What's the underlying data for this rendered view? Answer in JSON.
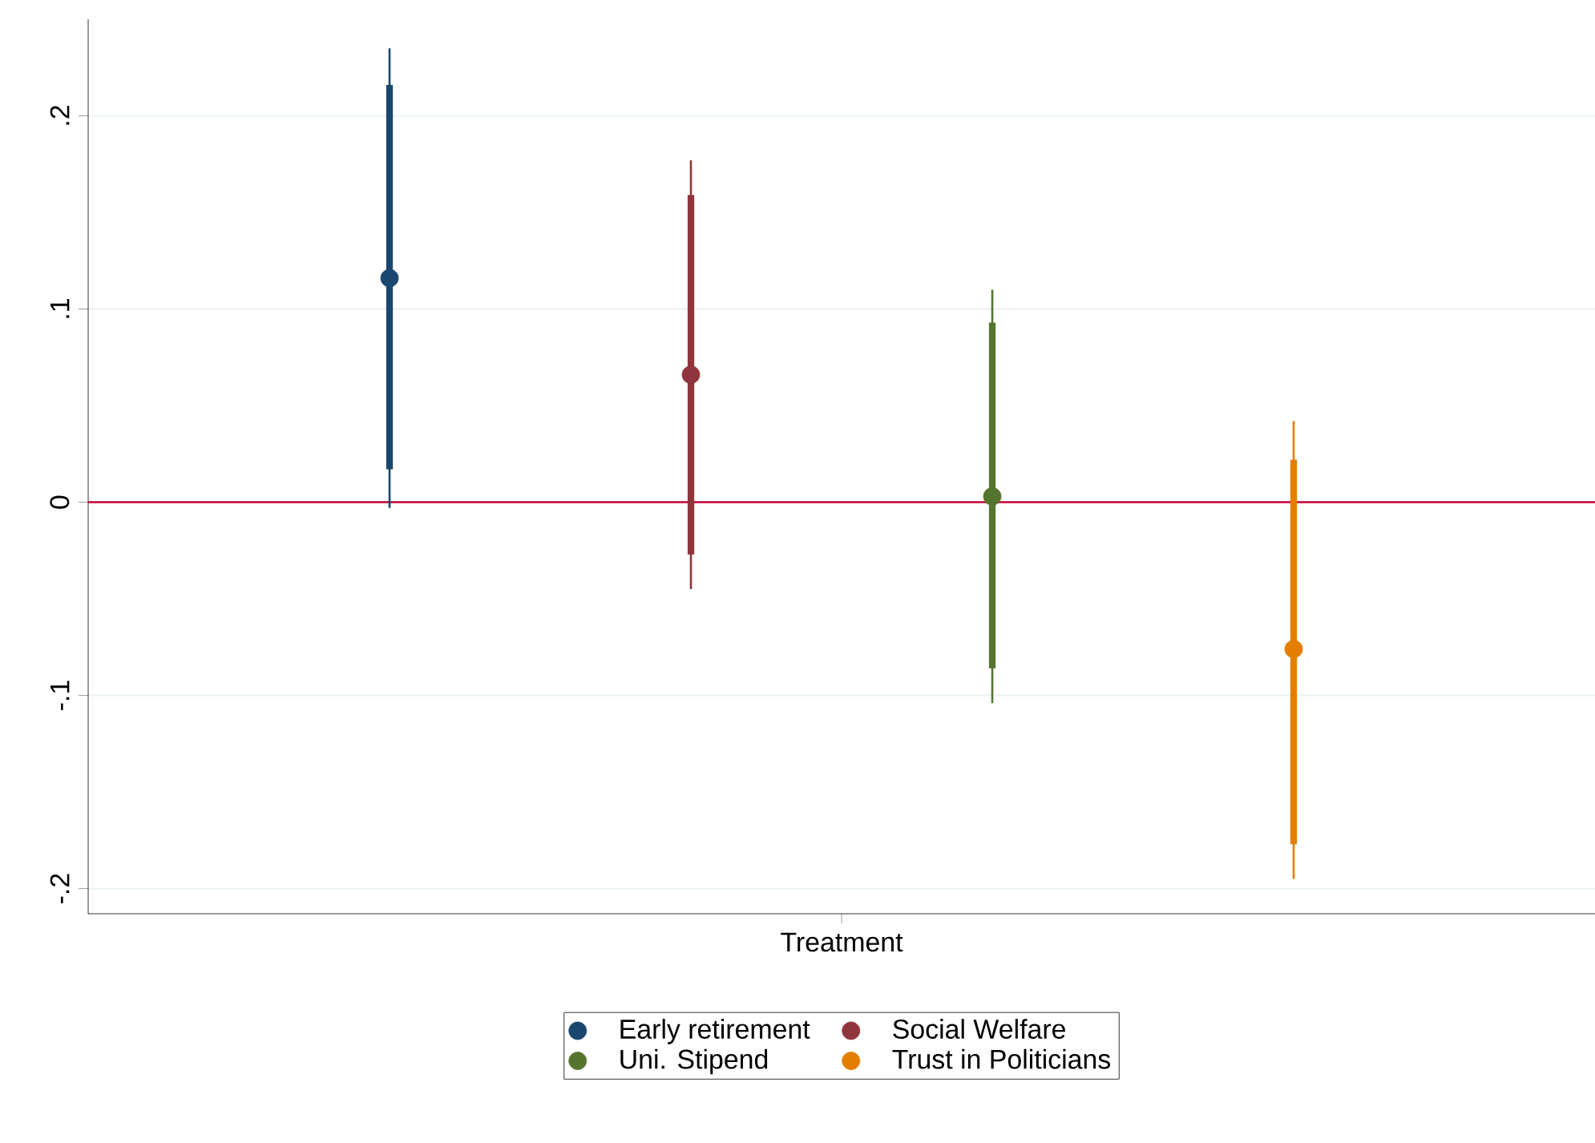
{
  "chart_data": {
    "type": "scatter",
    "categories": [
      "Treatment"
    ],
    "ylim": [
      -0.213,
      0.25
    ],
    "yticks": [
      {
        "value": -0.2,
        "label": "-.2"
      },
      {
        "value": -0.1,
        "label": "-.1"
      },
      {
        "value": 0,
        "label": "0"
      },
      {
        "value": 0.1,
        "label": ".1"
      },
      {
        "value": 0.2,
        "label": ".2"
      }
    ],
    "grid": "y",
    "legend": "bottom",
    "marker": "circle",
    "ref_lines": [
      {
        "axis": "y",
        "value": 0,
        "color": "#c10534"
      }
    ],
    "series": [
      {
        "name": "Early retirement",
        "color": "#1a476f",
        "values": [
          0.116
        ],
        "errors": [
          [
            -0.003,
            0.235
          ]
        ]
      },
      {
        "name": "Social Welfare",
        "color": "#90353b",
        "values": [
          0.066
        ],
        "errors": [
          [
            -0.045,
            0.177
          ]
        ]
      },
      {
        "name": "Uni. Stipend",
        "color": "#55752f",
        "values": [
          0.003
        ],
        "errors": [
          [
            -0.104,
            0.11
          ]
        ]
      },
      {
        "name": "Trust in Politicians",
        "color": "#e37e00",
        "values": [
          -0.076
        ],
        "errors": [
          [
            -0.195,
            0.042
          ]
        ]
      },
      {
        "type": "bar",
        "color": "#1a476f",
        "base": [
          0.017
        ],
        "values": [
          0.199
        ]
      },
      {
        "type": "bar",
        "color": "#90353b",
        "base": [
          -0.027
        ],
        "values": [
          0.186
        ]
      },
      {
        "type": "bar",
        "color": "#55752f",
        "base": [
          -0.086
        ],
        "values": [
          0.179
        ]
      },
      {
        "type": "bar",
        "color": "#e37e00",
        "base": [
          -0.177
        ],
        "values": [
          0.199
        ]
      }
    ]
  }
}
